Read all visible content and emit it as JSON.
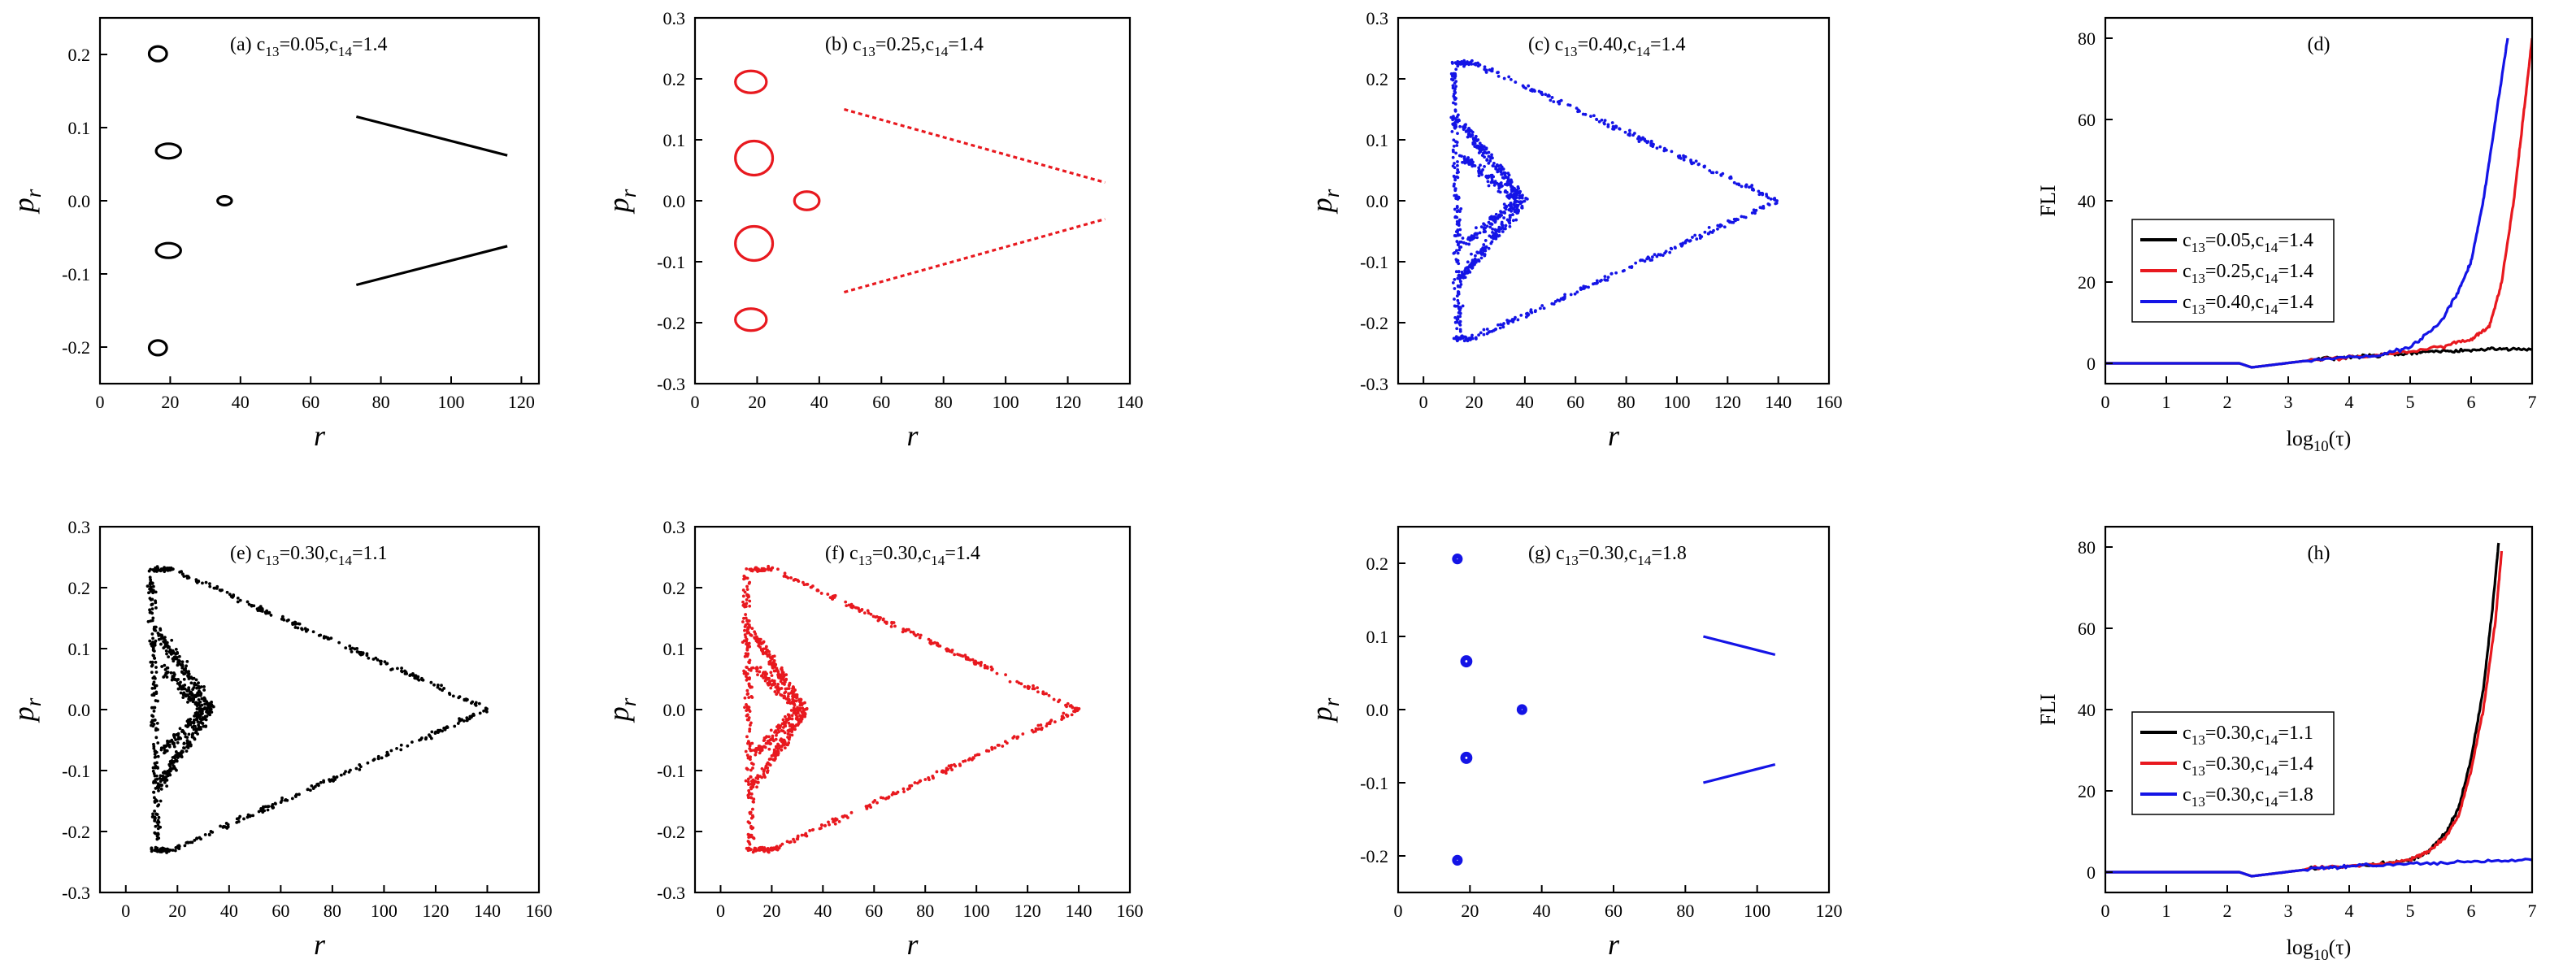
{
  "chart_data": [
    {
      "id": "a",
      "type": "scatter",
      "annotation": "(a) c13=0.05,c14=1.4",
      "xlabel": "r",
      "ylabel": "pr",
      "xlim": [
        0,
        125
      ],
      "ylim": [
        -0.25,
        0.25
      ],
      "xticks": [
        0,
        20,
        40,
        60,
        80,
        100,
        120
      ],
      "yticks": [
        -0.2,
        -0.1,
        0.0,
        0.1,
        0.2
      ],
      "ytick_format": 1,
      "color": "#000000",
      "loops": [
        {
          "cx": 16.5,
          "cy": 0.201,
          "rx": 2.5,
          "ry": 0.01
        },
        {
          "cx": 19.5,
          "cy": 0.068,
          "rx": 3.5,
          "ry": 0.01
        },
        {
          "cx": 35.5,
          "cy": 0.0,
          "rx": 2.0,
          "ry": 0.006
        },
        {
          "cx": 19.5,
          "cy": -0.068,
          "rx": 3.5,
          "ry": 0.01
        },
        {
          "cx": 16.5,
          "cy": -0.201,
          "rx": 2.5,
          "ry": 0.01
        }
      ],
      "segments": [
        {
          "x1": 73,
          "y1": 0.115,
          "x2": 116,
          "y2": 0.062
        },
        {
          "x1": 73,
          "y1": -0.115,
          "x2": 116,
          "y2": -0.062
        }
      ]
    },
    {
      "id": "b",
      "type": "scatter",
      "annotation": "(b) c13=0.25,c14=1.4",
      "xlabel": "r",
      "ylabel": "pr",
      "xlim": [
        0,
        140
      ],
      "ylim": [
        -0.3,
        0.3
      ],
      "xticks": [
        0,
        20,
        40,
        60,
        80,
        100,
        120,
        140
      ],
      "yticks": [
        -0.3,
        -0.2,
        -0.1,
        0.0,
        0.1,
        0.2,
        0.3
      ],
      "ytick_format": 1,
      "color": "#e8191f",
      "loops": [
        {
          "cx": 18,
          "cy": 0.195,
          "rx": 5,
          "ry": 0.018
        },
        {
          "cx": 19,
          "cy": 0.07,
          "rx": 6,
          "ry": 0.028
        },
        {
          "cx": 36,
          "cy": 0.0,
          "rx": 4,
          "ry": 0.015
        },
        {
          "cx": 19,
          "cy": -0.07,
          "rx": 6,
          "ry": 0.028
        },
        {
          "cx": 18,
          "cy": -0.195,
          "rx": 5,
          "ry": 0.018
        }
      ],
      "segments": [
        {
          "x1": 48,
          "y1": 0.15,
          "x2": 132,
          "y2": 0.03
        },
        {
          "x1": 48,
          "y1": -0.15,
          "x2": 132,
          "y2": -0.03
        }
      ]
    },
    {
      "id": "c",
      "type": "scatter",
      "annotation": "(c) c13=0.40,c14=1.4",
      "xlabel": "r",
      "ylabel": "pr",
      "xlim": [
        -10,
        160
      ],
      "ylim": [
        -0.3,
        0.3
      ],
      "xticks": [
        0,
        20,
        40,
        60,
        80,
        100,
        120,
        140,
        160
      ],
      "yticks": [
        -0.3,
        -0.2,
        -0.1,
        0.0,
        0.1,
        0.2,
        0.3
      ],
      "ytick_format": 1,
      "color": "#1414e6",
      "triangle": {
        "tip_x": 140,
        "left_x": 12,
        "top_x": 20,
        "top_y": 0.225,
        "inner_x": 40
      }
    },
    {
      "id": "d",
      "type": "line",
      "annotation": "(d)",
      "xlabel": "log10(τ)",
      "ylabel": "FLI",
      "xlim": [
        0,
        7
      ],
      "ylim": [
        -5,
        85
      ],
      "xticks": [
        0,
        1,
        2,
        3,
        4,
        5,
        6,
        7
      ],
      "yticks": [
        0,
        20,
        40,
        60,
        80
      ],
      "ytick_format": 0,
      "series": [
        {
          "name": "c13=0.05,c14=1.4",
          "color": "#000000",
          "x": [
            0,
            2.2,
            2.4,
            3.5,
            4.0,
            4.5,
            5.0,
            5.5,
            6.0,
            6.5,
            7.0
          ],
          "y": [
            0,
            0,
            -1,
            1,
            1.5,
            2,
            2.5,
            3,
            3.2,
            3.5,
            3.5
          ]
        },
        {
          "name": "c13=0.25,c14=1.4",
          "color": "#e8191f",
          "x": [
            0,
            2.2,
            2.4,
            3.5,
            4.5,
            5.5,
            6.0,
            6.3,
            6.5,
            6.7,
            6.85,
            7.0
          ],
          "y": [
            0,
            0,
            -1,
            1,
            2,
            4,
            6,
            9,
            20,
            40,
            60,
            80
          ]
        },
        {
          "name": "c13=0.40,c14=1.4",
          "color": "#1414e6",
          "x": [
            0,
            2.2,
            2.4,
            3.5,
            4.5,
            5.0,
            5.5,
            5.8,
            6.0,
            6.2,
            6.4,
            6.6
          ],
          "y": [
            0,
            0,
            -1,
            1,
            2,
            4,
            10,
            18,
            25,
            40,
            60,
            80
          ]
        }
      ]
    },
    {
      "id": "e",
      "type": "scatter",
      "annotation": "(e) c13=0.30,c14=1.1",
      "xlabel": "r",
      "ylabel": "pr",
      "xlim": [
        -10,
        160
      ],
      "ylim": [
        -0.3,
        0.3
      ],
      "xticks": [
        0,
        20,
        40,
        60,
        80,
        100,
        120,
        140,
        160
      ],
      "yticks": [
        -0.3,
        -0.2,
        -0.1,
        0.0,
        0.1,
        0.2,
        0.3
      ],
      "ytick_format": 1,
      "color": "#000000",
      "triangle": {
        "tip_x": 140,
        "left_x": 10,
        "top_x": 18,
        "top_y": 0.23,
        "inner_x": 33
      }
    },
    {
      "id": "f",
      "type": "scatter",
      "annotation": "(f) c13=0.30,c14=1.4",
      "xlabel": "r",
      "ylabel": "pr",
      "xlim": [
        -10,
        160
      ],
      "ylim": [
        -0.3,
        0.3
      ],
      "xticks": [
        0,
        20,
        40,
        60,
        80,
        100,
        120,
        140,
        160
      ],
      "yticks": [
        -0.3,
        -0.2,
        -0.1,
        0.0,
        0.1,
        0.2,
        0.3
      ],
      "ytick_format": 1,
      "color": "#e8191f",
      "triangle": {
        "tip_x": 140,
        "left_x": 10,
        "top_x": 20,
        "top_y": 0.23,
        "inner_x": 33
      }
    },
    {
      "id": "g",
      "type": "scatter",
      "annotation": "(g) c13=0.30,c14=1.8",
      "xlabel": "r",
      "ylabel": "pr",
      "xlim": [
        0,
        120
      ],
      "ylim": [
        -0.25,
        0.25
      ],
      "xticks": [
        0,
        20,
        40,
        60,
        80,
        100,
        120
      ],
      "yticks": [
        -0.2,
        -0.1,
        0.0,
        0.1,
        0.2
      ],
      "ytick_format": 1,
      "color": "#1414e6",
      "loops": [
        {
          "cx": 16.5,
          "cy": 0.206,
          "rx": 0.8,
          "ry": 0.004
        },
        {
          "cx": 19,
          "cy": 0.066,
          "rx": 1.0,
          "ry": 0.005
        },
        {
          "cx": 34.5,
          "cy": 0.0,
          "rx": 0.8,
          "ry": 0.004
        },
        {
          "cx": 19,
          "cy": -0.066,
          "rx": 1.0,
          "ry": 0.005
        },
        {
          "cx": 16.5,
          "cy": -0.206,
          "rx": 0.8,
          "ry": 0.004
        }
      ],
      "segments": [
        {
          "x1": 85,
          "y1": 0.1,
          "x2": 105,
          "y2": 0.075
        },
        {
          "x1": 85,
          "y1": -0.1,
          "x2": 105,
          "y2": -0.075
        }
      ]
    },
    {
      "id": "h",
      "type": "line",
      "annotation": "(h)",
      "xlabel": "log10(τ)",
      "ylabel": "FLI",
      "xlim": [
        0,
        7
      ],
      "ylim": [
        -5,
        85
      ],
      "xticks": [
        0,
        1,
        2,
        3,
        4,
        5,
        6,
        7
      ],
      "yticks": [
        0,
        20,
        40,
        60,
        80
      ],
      "ytick_format": 0,
      "series": [
        {
          "name": "c13=0.30,c14=1.1",
          "color": "#000000",
          "x": [
            0,
            2.2,
            2.4,
            3.5,
            4.5,
            5.0,
            5.3,
            5.6,
            5.8,
            6.0,
            6.2,
            6.35,
            6.45
          ],
          "y": [
            0,
            0,
            -1,
            1,
            2,
            3,
            5,
            10,
            16,
            28,
            45,
            65,
            81
          ]
        },
        {
          "name": "c13=0.30,c14=1.4",
          "color": "#e8191f",
          "x": [
            0,
            2.2,
            2.4,
            3.5,
            4.5,
            5.0,
            5.3,
            5.6,
            5.8,
            6.0,
            6.2,
            6.4,
            6.5
          ],
          "y": [
            0,
            0,
            -1,
            1,
            2,
            3,
            5,
            9,
            14,
            25,
            40,
            62,
            79
          ]
        },
        {
          "name": "c13=0.30,c14=1.8",
          "color": "#1414e6",
          "x": [
            0,
            2.2,
            2.4,
            3.5,
            4.0,
            5.0,
            6.0,
            7.0
          ],
          "y": [
            0,
            0,
            -1,
            1,
            1.5,
            2,
            2.5,
            3
          ]
        }
      ]
    }
  ]
}
